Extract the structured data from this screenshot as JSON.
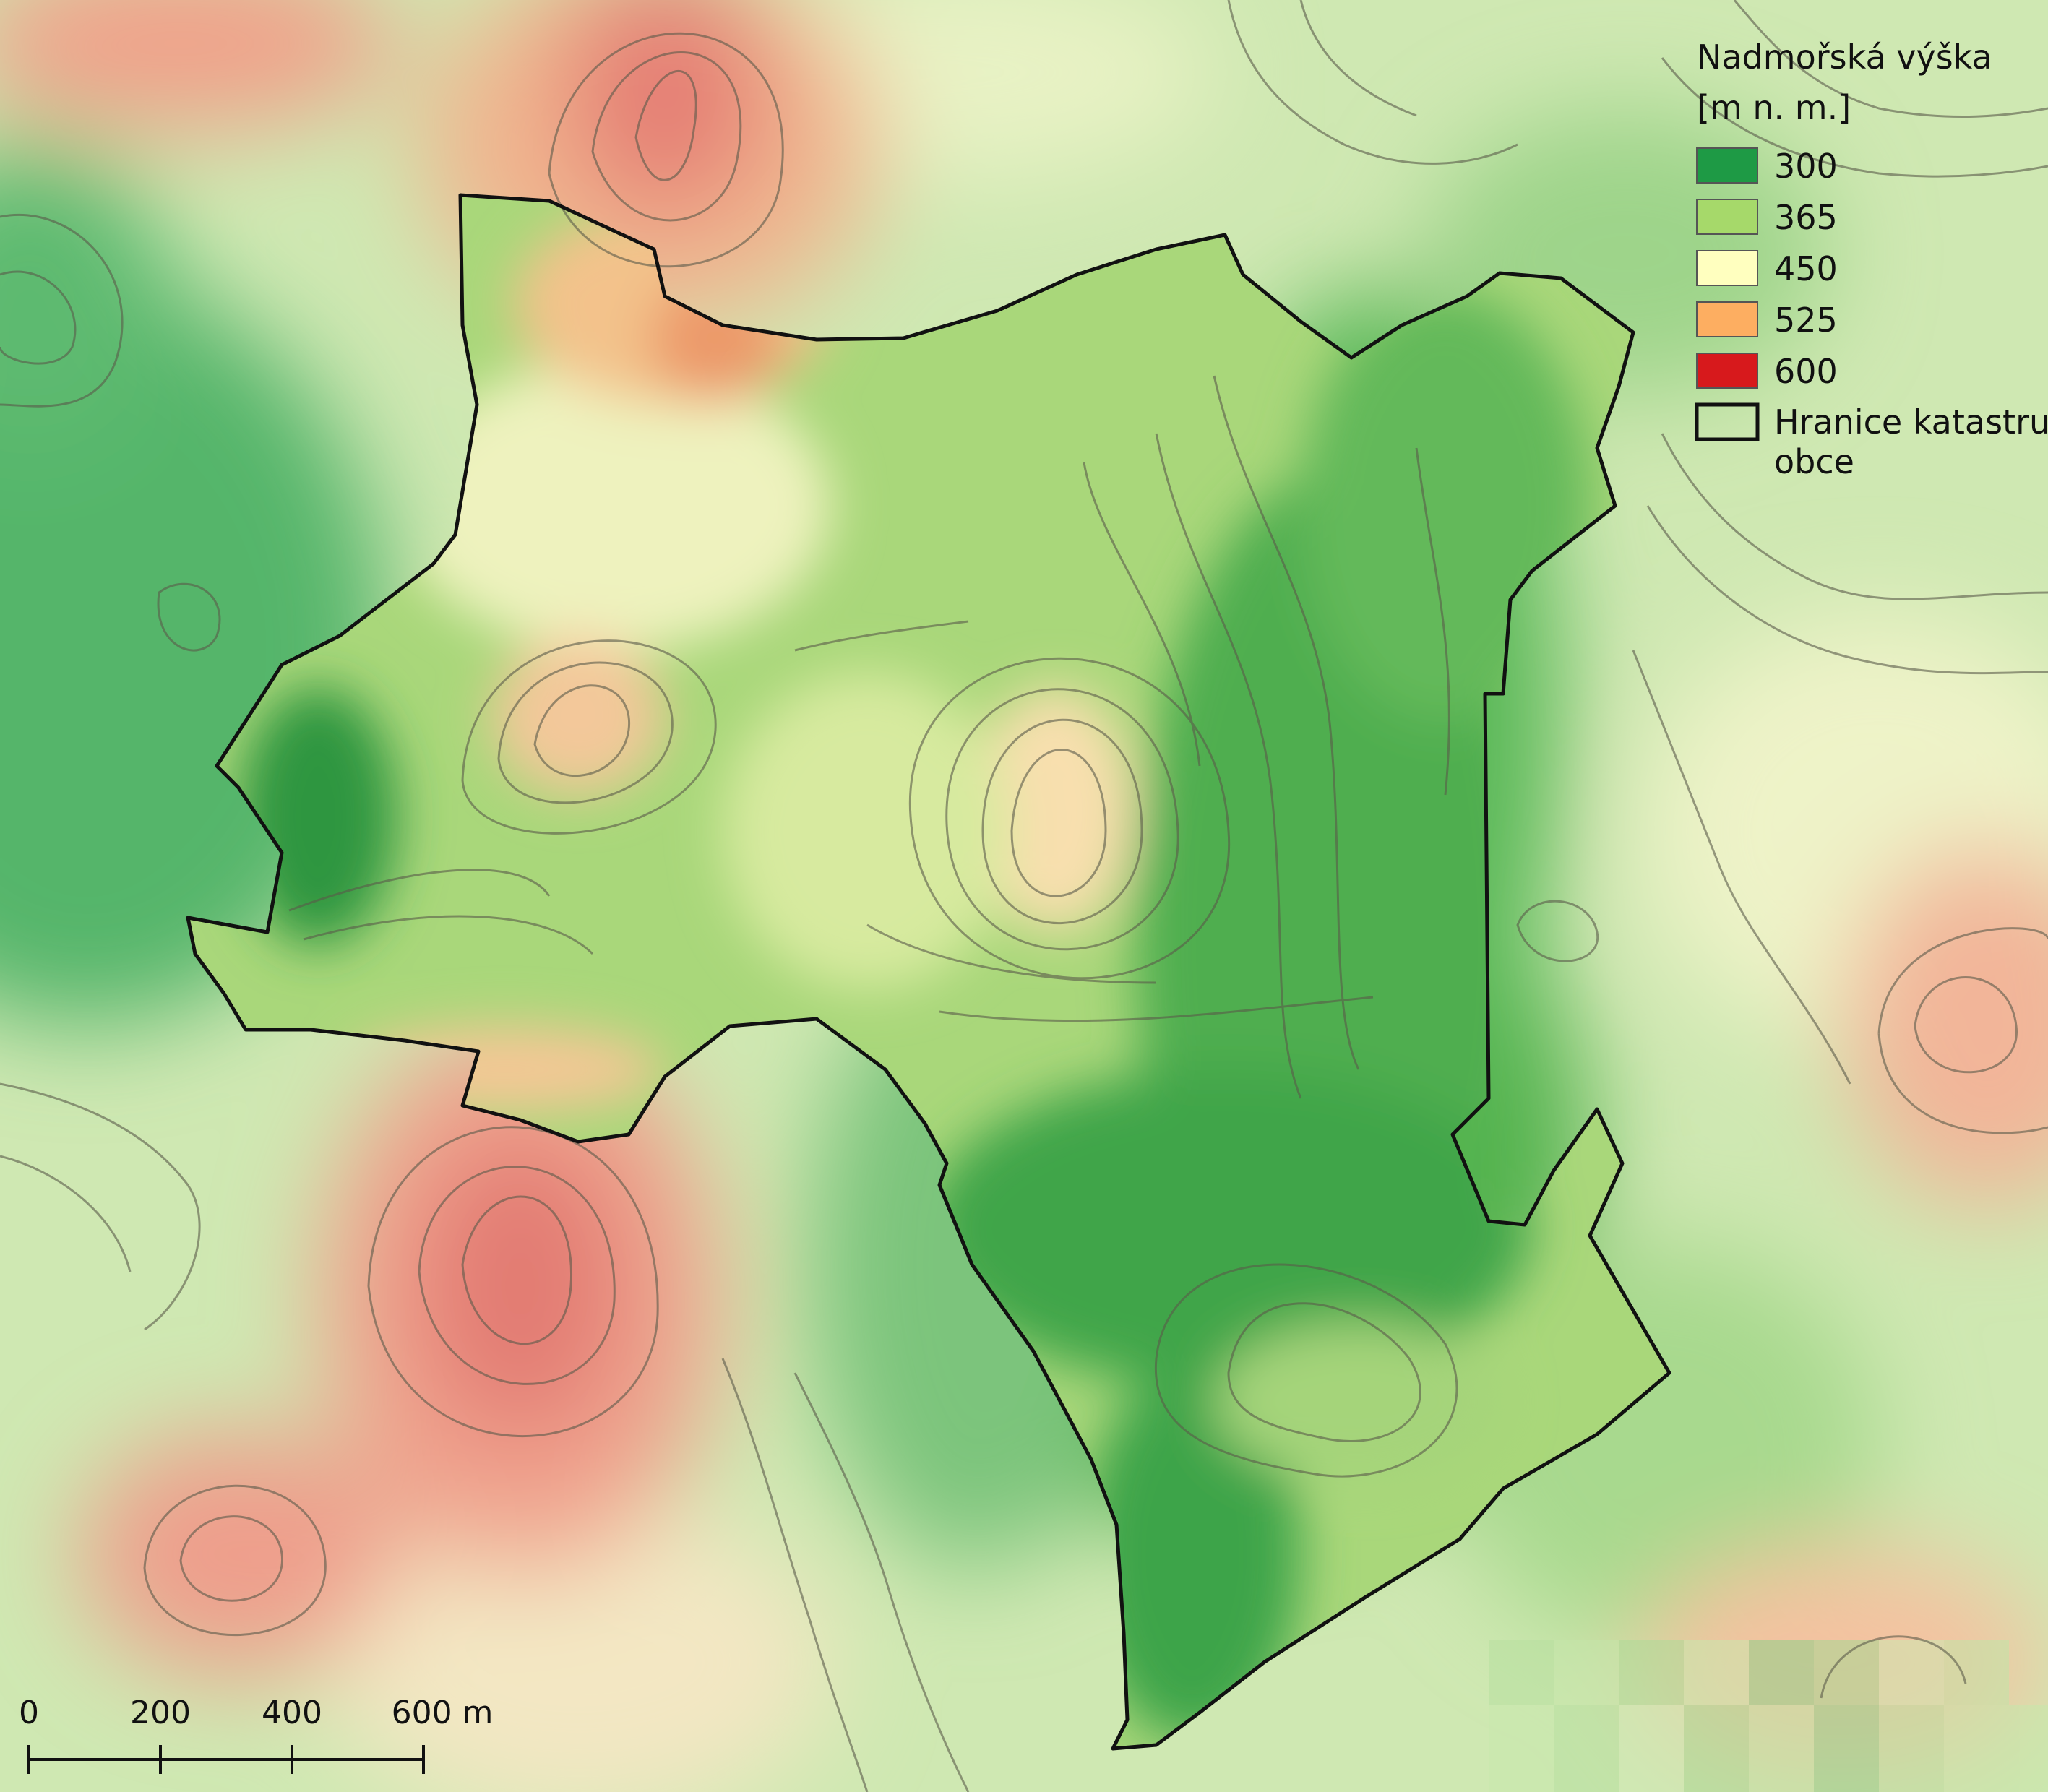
{
  "legend": {
    "title_line1": "Nadmořská výška",
    "title_line2": "[m n. m.]",
    "classes": [
      {
        "value": "300",
        "color": "#1e9a45"
      },
      {
        "value": "365",
        "color": "#a6d96a"
      },
      {
        "value": "450",
        "color": "#ffffbf"
      },
      {
        "value": "525",
        "color": "#fdae61"
      },
      {
        "value": "600",
        "color": "#d7191c"
      }
    ],
    "boundary_label_line1": "Hranice katastru",
    "boundary_label_line2": "obce"
  },
  "scale_bar": {
    "ticks": [
      "0",
      "200",
      "400",
      "600 m"
    ]
  },
  "colors": {
    "boundary": "#111111",
    "contour": "#5a5a4a"
  }
}
